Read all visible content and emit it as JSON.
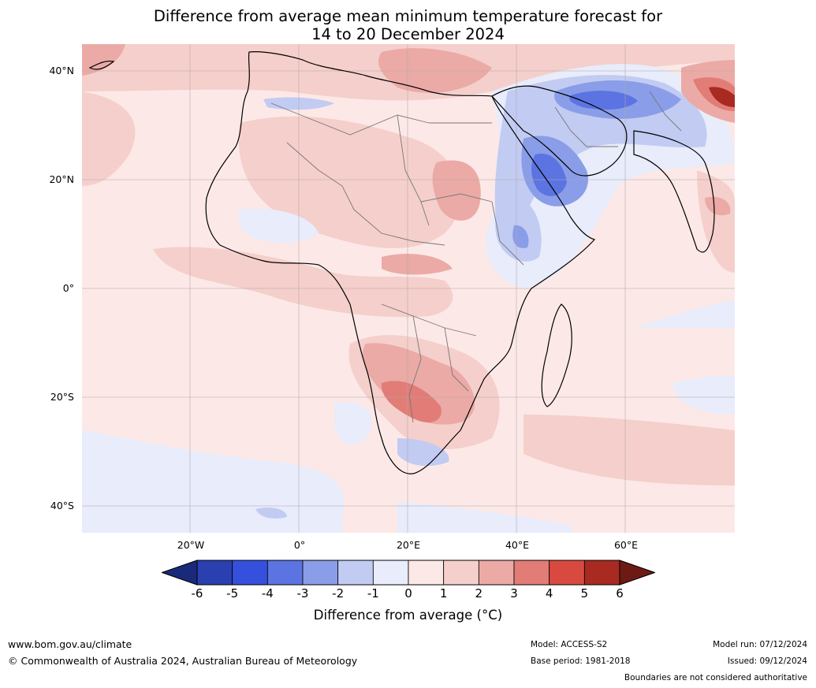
{
  "title_line1": "Difference from average mean minimum temperature forecast for",
  "title_line2": "14 to 20 December 2024",
  "lat_labels": [
    "40°N",
    "20°N",
    "0°",
    "20°S",
    "40°S"
  ],
  "lon_labels": [
    "20°W",
    "0°",
    "20°E",
    "40°E",
    "60°E"
  ],
  "colorbar": {
    "ticks": [
      "-6",
      "-5",
      "-4",
      "-3",
      "-2",
      "-1",
      "0",
      "1",
      "2",
      "3",
      "4",
      "5",
      "6"
    ],
    "title": "Difference from average (°C)",
    "colors": [
      "#1a2a7a",
      "#2a40b0",
      "#3550dc",
      "#5c74e2",
      "#8a9de8",
      "#c2cbf2",
      "#e8ecfb",
      "#fce9e7",
      "#f5cfcb",
      "#ebaaa6",
      "#e27c76",
      "#d84a40",
      "#a82a20",
      "#6e1a14"
    ]
  },
  "footer": {
    "website": "www.bom.gov.au/climate",
    "copyright": "© Commonwealth of Australia 2024, Australian Bureau of Meteorology",
    "model": "Model: ACCESS-S2",
    "base_period": "Base period: 1981-2018",
    "model_run": "Model run: 07/12/2024",
    "issued": "Issued: 09/12/2024",
    "disclaimer": "Boundaries are not considered authoritative"
  }
}
